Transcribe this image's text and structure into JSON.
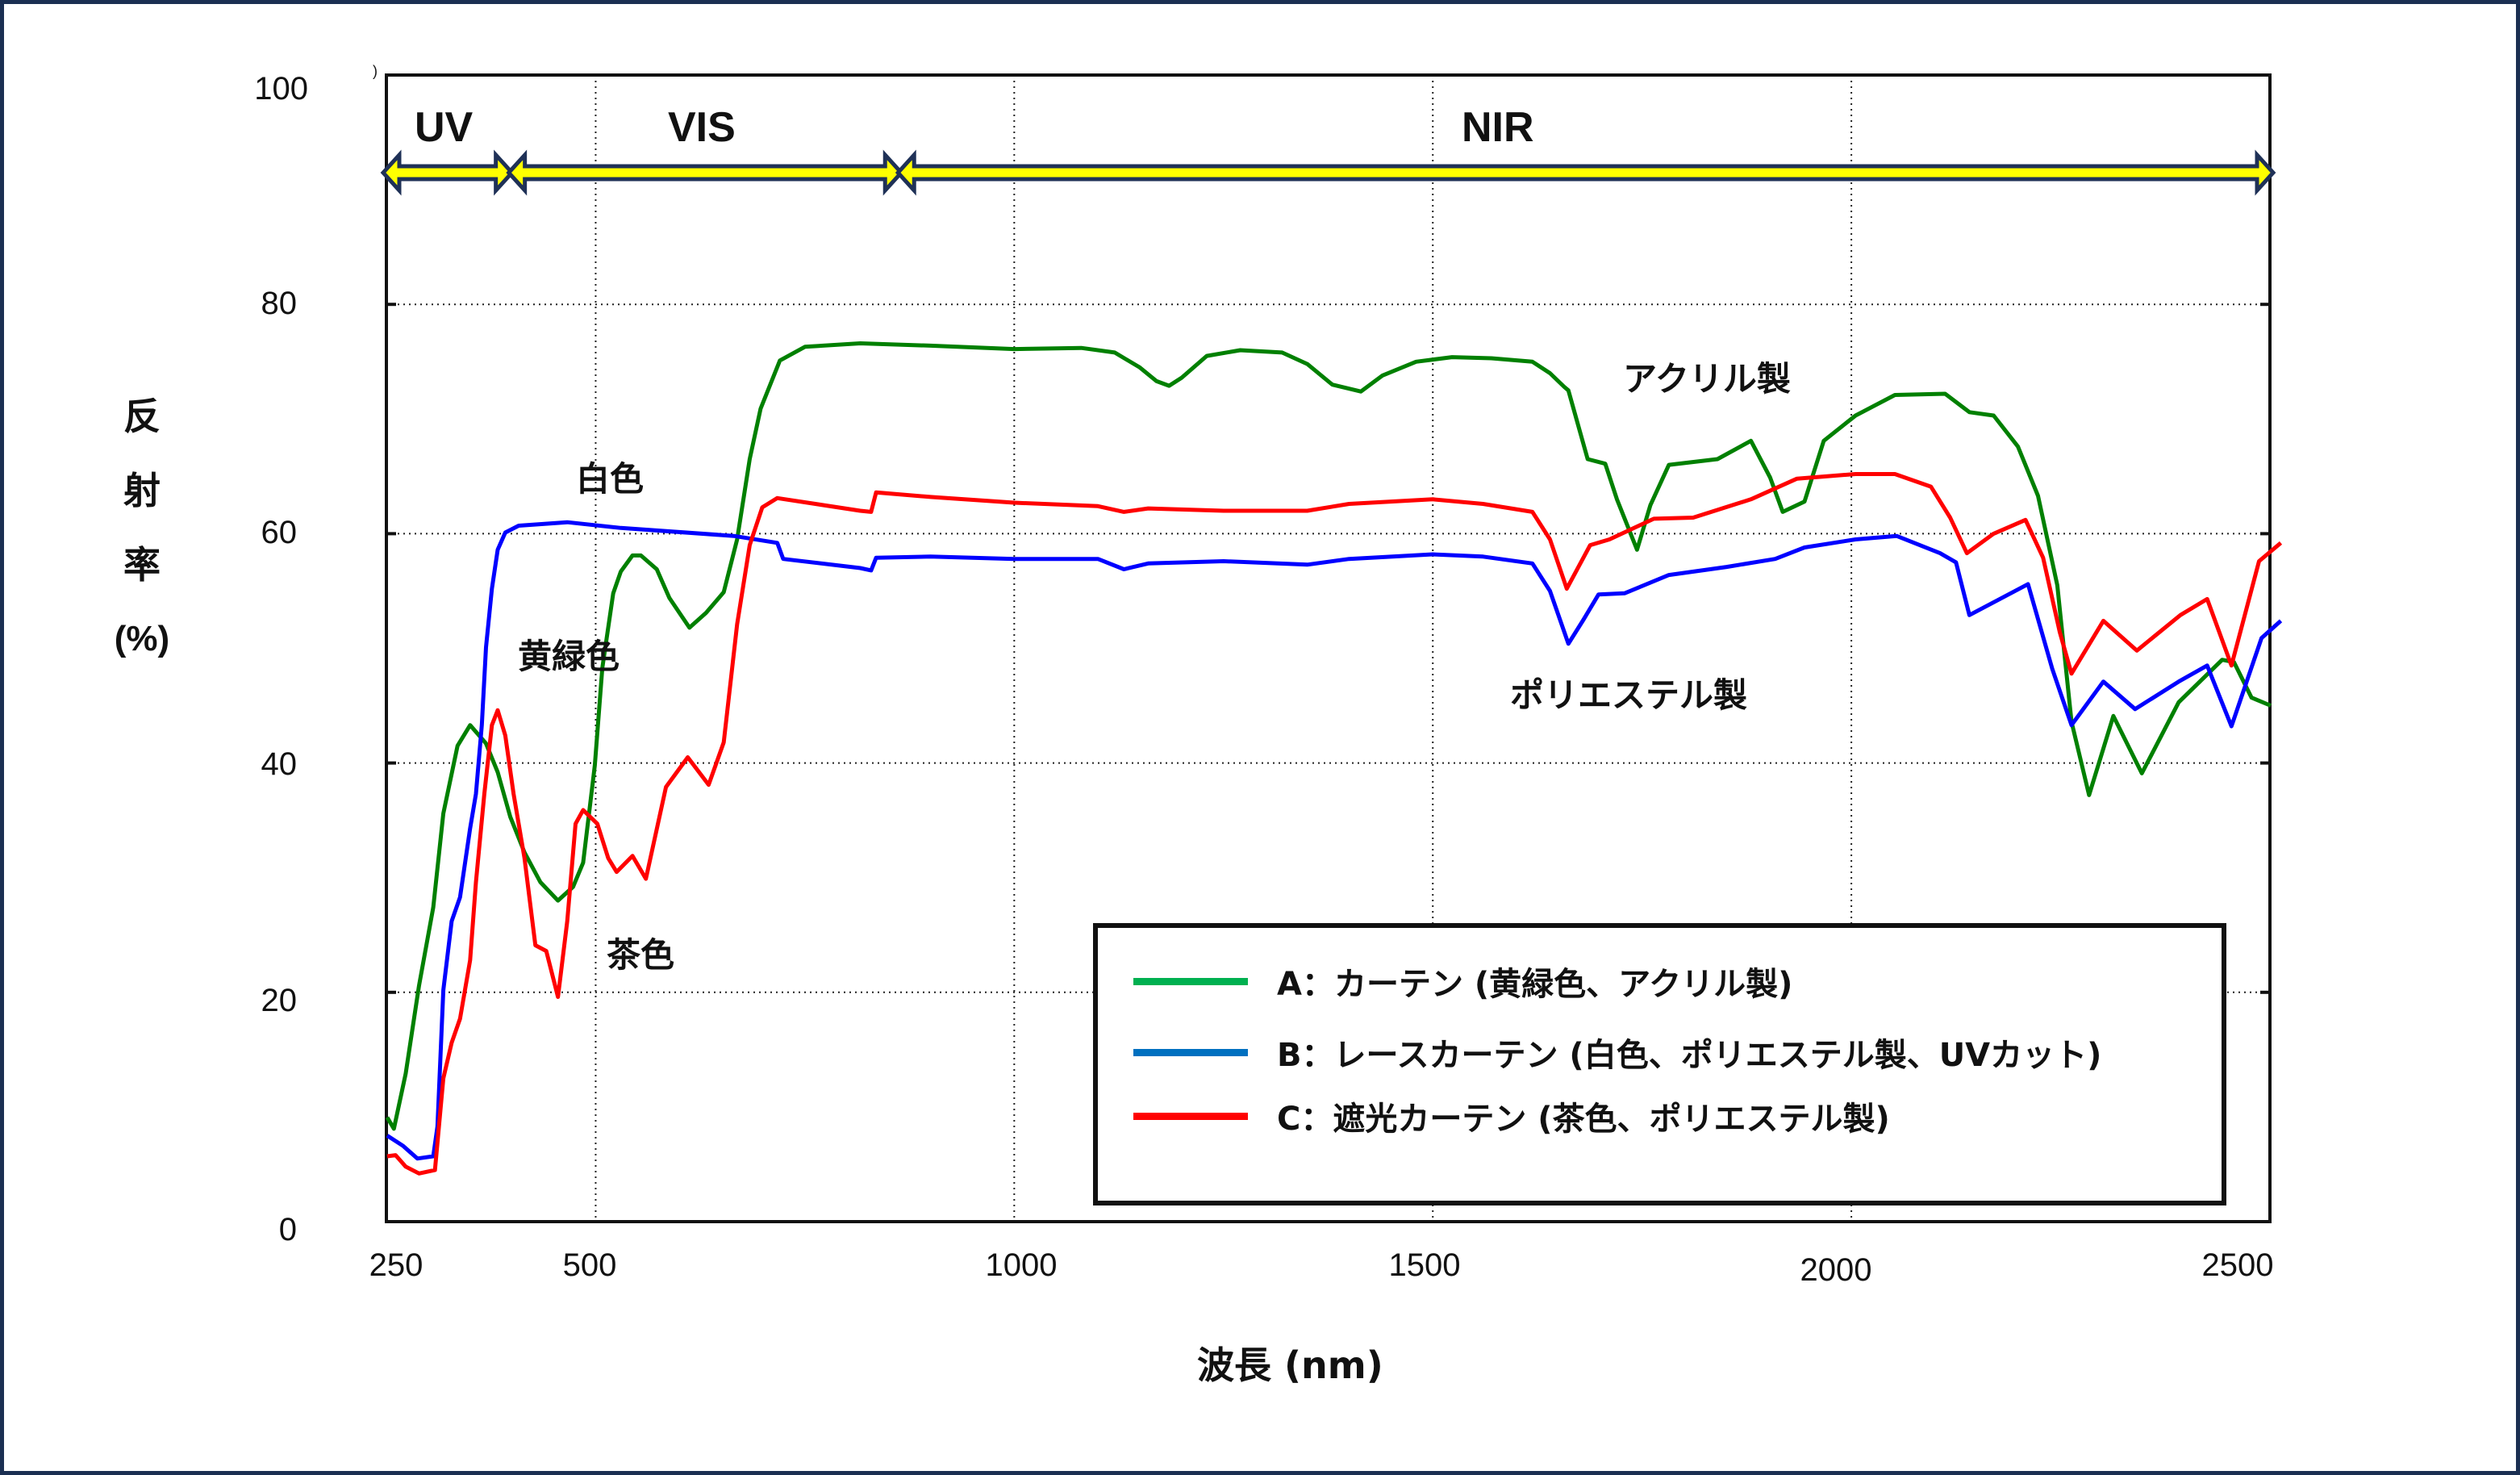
{
  "chart_data": {
    "type": "line",
    "title": "",
    "xlabel": "波長 (nm)",
    "ylabel": "反射率 (%)",
    "xlim": [
      250,
      2500
    ],
    "ylim": [
      0,
      100
    ],
    "grid": true,
    "x_ticks": [
      250,
      500,
      1000,
      1500,
      2000,
      2500
    ],
    "x_tick_labels": [
      "250",
      "500",
      "1000",
      "1500",
      "2000",
      "2500"
    ],
    "y_ticks": [
      0,
      20,
      40,
      60,
      80,
      100
    ],
    "y_tick_labels": [
      "0",
      "20",
      "40",
      "60",
      "80",
      "100"
    ],
    "legend_position": "lower-center-right (inside plot)",
    "regions": [
      {
        "label": "UV",
        "x_start": 250,
        "x_end": 400
      },
      {
        "label": "VIS",
        "x_start": 400,
        "x_end": 865
      },
      {
        "label": "NIR",
        "x_start": 865,
        "x_end": 2500
      }
    ],
    "annotations": [
      {
        "text": "白色",
        "near": "series B"
      },
      {
        "text": "黄緑色",
        "near": "series A"
      },
      {
        "text": "茶色",
        "near": "series C"
      },
      {
        "text": "アクリル製",
        "near": "series A"
      },
      {
        "text": "ポリエステル製",
        "near": "series B/C"
      }
    ],
    "series": [
      {
        "name": "A：カーテン (黄緑色、アクリル製)",
        "color": "#008000",
        "x": [
          251,
          259,
          273,
          289,
          306,
          318,
          335,
          350,
          369,
          383,
          398,
          415,
          434,
          455,
          473,
          485,
          499,
          508,
          521,
          530,
          544,
          554,
          573,
          588,
          612,
          632,
          653,
          669,
          684,
          697,
          720,
          750,
          816,
          900,
          1000,
          1080,
          1120,
          1150,
          1170,
          1185,
          1200,
          1230,
          1270,
          1320,
          1350,
          1380,
          1414,
          1440,
          1480,
          1523,
          1570,
          1619,
          1640,
          1657,
          1662,
          1685,
          1706,
          1720,
          1744,
          1760,
          1782,
          1840,
          1880,
          1903,
          1918,
          1944,
          1967,
          2005,
          2052,
          2112,
          2141,
          2170,
          2199,
          2223,
          2246,
          2263,
          2284,
          2313,
          2347,
          2391,
          2443,
          2457,
          2478,
          2501
        ],
        "values": [
          9.1,
          8.1,
          12.9,
          20.6,
          27.4,
          35.6,
          41.5,
          43.3,
          41.7,
          39.2,
          35.3,
          32.2,
          29.6,
          28.0,
          29.2,
          31.3,
          39.8,
          48.3,
          54.8,
          56.7,
          58.1,
          58.1,
          56.9,
          54.4,
          51.8,
          53.1,
          54.9,
          59.5,
          66.5,
          70.9,
          75.1,
          76.3,
          76.6,
          76.4,
          76.1,
          76.2,
          75.8,
          74.5,
          73.3,
          72.9,
          73.6,
          75.5,
          76.0,
          75.8,
          74.8,
          73.0,
          72.4,
          73.8,
          75.0,
          75.4,
          75.3,
          75.0,
          74.0,
          72.8,
          72.5,
          66.5,
          66.1,
          63.0,
          58.6,
          62.5,
          66.0,
          66.5,
          68.1,
          64.9,
          61.9,
          62.8,
          68.1,
          70.3,
          72.1,
          72.2,
          70.6,
          70.3,
          67.6,
          63.3,
          55.5,
          43.6,
          37.2,
          44.1,
          39.1,
          45.3,
          49.0,
          48.8,
          45.7,
          45.0
        ]
      },
      {
        "name": "B：レースカーテン (白色、ポリエステル製、UVカット)",
        "color": "#0000ff",
        "x": [
          251,
          270,
          287,
          306,
          311,
          318,
          328,
          338,
          350,
          357,
          364,
          369,
          376,
          383,
          392,
          408,
          466,
          530,
          665,
          717,
          724,
          816,
          829,
          835,
          900,
          1000,
          1100,
          1131,
          1160,
          1250,
          1350,
          1400,
          1500,
          1560,
          1619,
          1640,
          1662,
          1680,
          1698,
          1729,
          1782,
          1851,
          1909,
          1944,
          2005,
          2054,
          2106,
          2125,
          2141,
          2211,
          2240,
          2263,
          2301,
          2339,
          2391,
          2425,
          2454,
          2490,
          2513
        ],
        "values": [
          7.5,
          6.6,
          5.5,
          5.7,
          8.3,
          20.2,
          26.2,
          28.3,
          34.3,
          37.3,
          43.3,
          50.1,
          55.2,
          58.6,
          60.1,
          60.7,
          61.0,
          60.5,
          59.8,
          59.2,
          57.8,
          57.0,
          56.8,
          57.9,
          58.0,
          57.8,
          57.8,
          56.9,
          57.4,
          57.6,
          57.3,
          57.8,
          58.2,
          58.0,
          57.4,
          55.0,
          50.4,
          52.5,
          54.7,
          54.8,
          56.4,
          57.1,
          57.8,
          58.8,
          59.5,
          59.8,
          58.3,
          57.5,
          52.9,
          55.6,
          48.2,
          43.3,
          47.1,
          44.7,
          47.1,
          48.5,
          43.2,
          50.9,
          52.4
        ]
      },
      {
        "name": "C：遮光カーテン (茶色、ポリエステル製)",
        "color": "#ff0000",
        "x": [
          251,
          261,
          273,
          289,
          308,
          318,
          328,
          338,
          350,
          357,
          367,
          376,
          383,
          392,
          402,
          415,
          428,
          441,
          455,
          466,
          476,
          485,
          502,
          515,
          525,
          544,
          560,
          584,
          610,
          635,
          653,
          669,
          684,
          699,
          717,
          816,
          829,
          835,
          900,
          1000,
          1100,
          1131,
          1160,
          1250,
          1350,
          1400,
          1500,
          1560,
          1619,
          1640,
          1660,
          1688,
          1711,
          1764,
          1811,
          1880,
          1935,
          2005,
          2052,
          2095,
          2118,
          2138,
          2170,
          2208,
          2229,
          2249,
          2263,
          2301,
          2341,
          2393,
          2425,
          2454,
          2487,
          2513
        ],
        "values": [
          5.7,
          5.8,
          4.8,
          4.2,
          4.5,
          12.5,
          15.6,
          17.7,
          22.8,
          29.6,
          37.3,
          43.3,
          44.6,
          42.4,
          37.3,
          31.7,
          24.1,
          23.6,
          19.6,
          26.2,
          34.7,
          35.9,
          34.7,
          31.7,
          30.5,
          31.9,
          29.9,
          37.9,
          40.5,
          38.1,
          41.8,
          52.1,
          59.0,
          62.3,
          63.1,
          62.0,
          61.9,
          63.6,
          63.2,
          62.7,
          62.4,
          61.9,
          62.2,
          62.0,
          62.0,
          62.6,
          63.0,
          62.6,
          61.9,
          59.5,
          55.2,
          59.0,
          59.5,
          61.3,
          61.4,
          63.0,
          64.8,
          65.2,
          65.2,
          64.1,
          61.4,
          58.3,
          60.0,
          61.2,
          57.9,
          51.4,
          47.8,
          52.4,
          49.8,
          52.9,
          54.3,
          48.5,
          57.6,
          59.2
        ]
      }
    ]
  },
  "axes": {
    "y_title_chars": [
      "反",
      "射",
      "率",
      "(%)"
    ],
    "x_title": "波長 (nm)",
    "y_ticks": [
      "100",
      "80",
      "60",
      "40",
      "20",
      "0"
    ],
    "x_ticks": [
      "250",
      "500",
      "1000",
      "1500",
      "2000",
      "2500"
    ]
  },
  "bands": {
    "uv": "UV",
    "vis": "VIS",
    "nir": "NIR",
    "arrow_fill": "#ffff00",
    "arrow_stroke": "#1f3157"
  },
  "annotations": {
    "white": "白色",
    "yellow_green": "黄緑色",
    "brown": "茶色",
    "acrylic": "アクリル製",
    "polyester": "ポリエステル製",
    "artifact": ")"
  },
  "legend": {
    "items": [
      {
        "label": "A：カーテン (黄緑色、アクリル製)",
        "color": "#00b050"
      },
      {
        "label": "B：レースカーテン (白色、ポリエステル製、UVカット)",
        "color": "#0070c0"
      },
      {
        "label": "C：遮光カーテン (茶色、ポリエステル製)",
        "color": "#ff0000"
      }
    ]
  },
  "colors": {
    "frame": "#1b2f52",
    "series_a": "#008000",
    "series_b": "#0000ff",
    "series_c": "#ff0000"
  }
}
